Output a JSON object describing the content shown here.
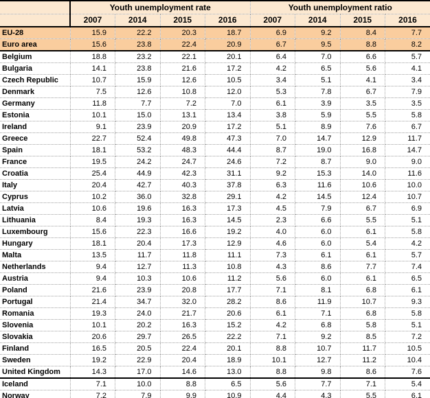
{
  "colors": {
    "header_bg": "#FCE8D0",
    "highlight_row_bg": "#FACD9E",
    "grid_dotted": "#A0A0A0",
    "solid_rule": "#000000",
    "text": "#000000"
  },
  "chart_data": {
    "type": "table",
    "title": "Youth unemployment rate and ratio by country, 2007-2016",
    "column_groups": [
      {
        "label": "Youth unemployment rate",
        "columns": [
          "2007",
          "2014",
          "2015",
          "2016"
        ]
      },
      {
        "label": "Youth unemployment ratio",
        "columns": [
          "2007",
          "2014",
          "2015",
          "2016"
        ]
      }
    ],
    "rows": [
      {
        "name": "EU-28",
        "highlight": true,
        "separator_below": false,
        "values": [
          "15.9",
          "22.2",
          "20.3",
          "18.7",
          "6.9",
          "9.2",
          "8.4",
          "7.7"
        ]
      },
      {
        "name": "Euro area",
        "highlight": true,
        "separator_below": true,
        "values": [
          "15.6",
          "23.8",
          "22.4",
          "20.9",
          "6.7",
          "9.5",
          "8.8",
          "8.2"
        ]
      },
      {
        "name": "Belgium",
        "highlight": false,
        "separator_below": false,
        "values": [
          "18.8",
          "23.2",
          "22.1",
          "20.1",
          "6.4",
          "7.0",
          "6.6",
          "5.7"
        ]
      },
      {
        "name": "Bulgaria",
        "highlight": false,
        "separator_below": false,
        "values": [
          "14.1",
          "23.8",
          "21.6",
          "17.2",
          "4.2",
          "6.5",
          "5.6",
          "4.1"
        ]
      },
      {
        "name": "Czech Republic",
        "highlight": false,
        "separator_below": false,
        "values": [
          "10.7",
          "15.9",
          "12.6",
          "10.5",
          "3.4",
          "5.1",
          "4.1",
          "3.4"
        ]
      },
      {
        "name": "Denmark",
        "highlight": false,
        "separator_below": false,
        "values": [
          "7.5",
          "12.6",
          "10.8",
          "12.0",
          "5.3",
          "7.8",
          "6.7",
          "7.9"
        ]
      },
      {
        "name": "Germany",
        "highlight": false,
        "separator_below": false,
        "values": [
          "11.8",
          "7.7",
          "7.2",
          "7.0",
          "6.1",
          "3.9",
          "3.5",
          "3.5"
        ]
      },
      {
        "name": "Estonia",
        "highlight": false,
        "separator_below": false,
        "values": [
          "10.1",
          "15.0",
          "13.1",
          "13.4",
          "3.8",
          "5.9",
          "5.5",
          "5.8"
        ]
      },
      {
        "name": "Ireland",
        "highlight": false,
        "separator_below": false,
        "values": [
          "9.1",
          "23.9",
          "20.9",
          "17.2",
          "5.1",
          "8.9",
          "7.6",
          "6.7"
        ]
      },
      {
        "name": "Greece",
        "highlight": false,
        "separator_below": false,
        "values": [
          "22.7",
          "52.4",
          "49.8",
          "47.3",
          "7.0",
          "14.7",
          "12.9",
          "11.7"
        ]
      },
      {
        "name": "Spain",
        "highlight": false,
        "separator_below": false,
        "values": [
          "18.1",
          "53.2",
          "48.3",
          "44.4",
          "8.7",
          "19.0",
          "16.8",
          "14.7"
        ]
      },
      {
        "name": "France",
        "highlight": false,
        "separator_below": false,
        "values": [
          "19.5",
          "24.2",
          "24.7",
          "24.6",
          "7.2",
          "8.7",
          "9.0",
          "9.0"
        ]
      },
      {
        "name": "Croatia",
        "highlight": false,
        "separator_below": false,
        "values": [
          "25.4",
          "44.9",
          "42.3",
          "31.1",
          "9.2",
          "15.3",
          "14.0",
          "11.6"
        ]
      },
      {
        "name": "Italy",
        "highlight": false,
        "separator_below": false,
        "values": [
          "20.4",
          "42.7",
          "40.3",
          "37.8",
          "6.3",
          "11.6",
          "10.6",
          "10.0"
        ]
      },
      {
        "name": "Cyprus",
        "highlight": false,
        "separator_below": false,
        "values": [
          "10.2",
          "36.0",
          "32.8",
          "29.1",
          "4.2",
          "14.5",
          "12.4",
          "10.7"
        ]
      },
      {
        "name": "Latvia",
        "highlight": false,
        "separator_below": false,
        "values": [
          "10.6",
          "19.6",
          "16.3",
          "17.3",
          "4.5",
          "7.9",
          "6.7",
          "6.9"
        ]
      },
      {
        "name": "Lithuania",
        "highlight": false,
        "separator_below": false,
        "values": [
          "8.4",
          "19.3",
          "16.3",
          "14.5",
          "2.3",
          "6.6",
          "5.5",
          "5.1"
        ]
      },
      {
        "name": "Luxembourg",
        "highlight": false,
        "separator_below": false,
        "values": [
          "15.6",
          "22.3",
          "16.6",
          "19.2",
          "4.0",
          "6.0",
          "6.1",
          "5.8"
        ]
      },
      {
        "name": "Hungary",
        "highlight": false,
        "separator_below": false,
        "values": [
          "18.1",
          "20.4",
          "17.3",
          "12.9",
          "4.6",
          "6.0",
          "5.4",
          "4.2"
        ]
      },
      {
        "name": "Malta",
        "highlight": false,
        "separator_below": false,
        "values": [
          "13.5",
          "11.7",
          "11.8",
          "11.1",
          "7.3",
          "6.1",
          "6.1",
          "5.7"
        ]
      },
      {
        "name": "Netherlands",
        "highlight": false,
        "separator_below": false,
        "values": [
          "9.4",
          "12.7",
          "11.3",
          "10.8",
          "4.3",
          "8.6",
          "7.7",
          "7.4"
        ]
      },
      {
        "name": "Austria",
        "highlight": false,
        "separator_below": false,
        "values": [
          "9.4",
          "10.3",
          "10.6",
          "11.2",
          "5.6",
          "6.0",
          "6.1",
          "6.5"
        ]
      },
      {
        "name": "Poland",
        "highlight": false,
        "separator_below": false,
        "values": [
          "21.6",
          "23.9",
          "20.8",
          "17.7",
          "7.1",
          "8.1",
          "6.8",
          "6.1"
        ]
      },
      {
        "name": "Portugal",
        "highlight": false,
        "separator_below": false,
        "values": [
          "21.4",
          "34.7",
          "32.0",
          "28.2",
          "8.6",
          "11.9",
          "10.7",
          "9.3"
        ]
      },
      {
        "name": "Romania",
        "highlight": false,
        "separator_below": false,
        "values": [
          "19.3",
          "24.0",
          "21.7",
          "20.6",
          "6.1",
          "7.1",
          "6.8",
          "5.8"
        ]
      },
      {
        "name": "Slovenia",
        "highlight": false,
        "separator_below": false,
        "values": [
          "10.1",
          "20.2",
          "16.3",
          "15.2",
          "4.2",
          "6.8",
          "5.8",
          "5.1"
        ]
      },
      {
        "name": "Slovakia",
        "highlight": false,
        "separator_below": false,
        "values": [
          "20.6",
          "29.7",
          "26.5",
          "22.2",
          "7.1",
          "9.2",
          "8.5",
          "7.2"
        ]
      },
      {
        "name": "Finland",
        "highlight": false,
        "separator_below": false,
        "values": [
          "16.5",
          "20.5",
          "22.4",
          "20.1",
          "8.8",
          "10.7",
          "11.7",
          "10.5"
        ]
      },
      {
        "name": "Sweden",
        "highlight": false,
        "separator_below": false,
        "values": [
          "19.2",
          "22.9",
          "20.4",
          "18.9",
          "10.1",
          "12.7",
          "11.2",
          "10.4"
        ]
      },
      {
        "name": "United Kingdom",
        "highlight": false,
        "separator_below": true,
        "values": [
          "14.3",
          "17.0",
          "14.6",
          "13.0",
          "8.8",
          "9.8",
          "8.6",
          "7.6"
        ]
      },
      {
        "name": "Iceland",
        "highlight": false,
        "separator_below": false,
        "values": [
          "7.1",
          "10.0",
          "8.8",
          "6.5",
          "5.6",
          "7.7",
          "7.1",
          "5.4"
        ]
      },
      {
        "name": "Norway",
        "highlight": false,
        "separator_below": false,
        "values": [
          "7.2",
          "7.9",
          "9.9",
          "10.9",
          "4.4",
          "4.3",
          "5.5",
          "6.1"
        ]
      }
    ]
  }
}
